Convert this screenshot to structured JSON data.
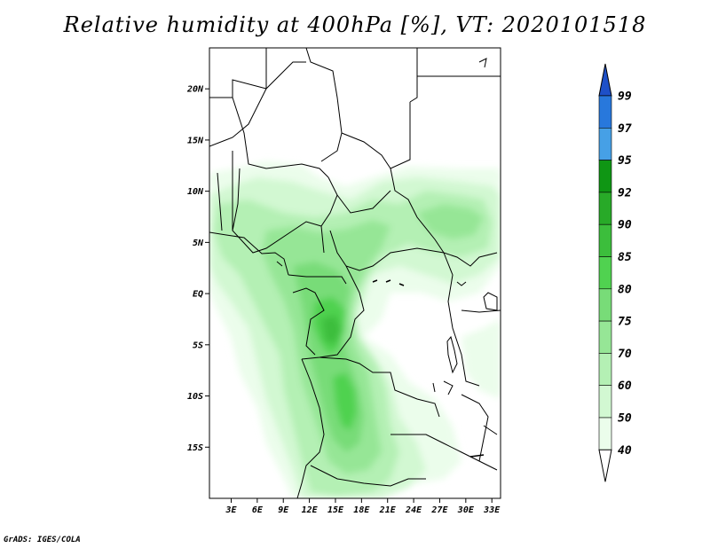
{
  "title": "Relative humidity at 400hPa [%], VT: 2020101518",
  "credit": "GrADS: IGES/COLA",
  "map": {
    "lat_labels": [
      "20N",
      "15N",
      "10N",
      "5N",
      "EQ",
      "5S",
      "10S",
      "15S"
    ],
    "lon_labels": [
      "3E",
      "6E",
      "9E",
      "12E",
      "15E",
      "18E",
      "21E",
      "24E",
      "27E",
      "30E",
      "33E"
    ],
    "lat_values": [
      20,
      15,
      10,
      5,
      0,
      -5,
      -10,
      -15
    ],
    "lon_values": [
      3,
      6,
      9,
      12,
      15,
      18,
      21,
      24,
      27,
      30,
      33
    ],
    "lon_range": [
      0.5,
      34
    ],
    "lat_range": [
      -20,
      24
    ]
  },
  "colorbar": {
    "levels": [
      "99",
      "97",
      "95",
      "92",
      "90",
      "85",
      "80",
      "75",
      "70",
      "60",
      "50",
      "40"
    ],
    "colors": [
      "#1e50c8",
      "#2878dc",
      "#46a0e6",
      "#0f9614",
      "#28aa28",
      "#3cbe3c",
      "#50d250",
      "#78dc78",
      "#96e696",
      "#b4f0b4",
      "#d2f8d2",
      "#ebfdeb"
    ]
  }
}
